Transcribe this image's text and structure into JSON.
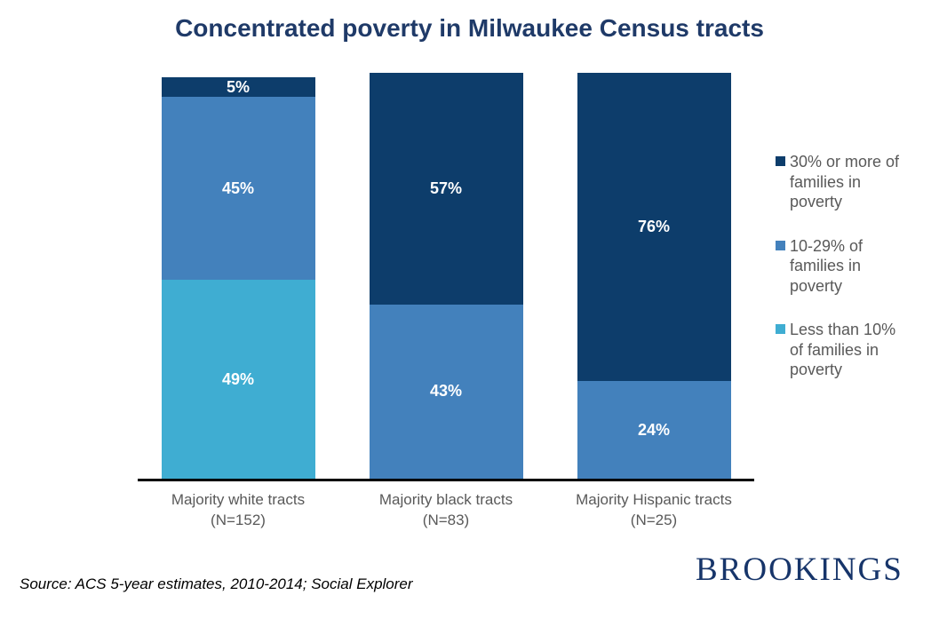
{
  "title": {
    "text": "Concentrated poverty in Milwaukee Census tracts",
    "color": "#1f3a68"
  },
  "chart_data": {
    "type": "bar",
    "subtype": "stacked-column",
    "unit": "%",
    "axis": {
      "max": 100,
      "baseline_color": "#000000",
      "gridlines": false,
      "y_axis_visible": false
    },
    "categories": [
      {
        "label": "Majority white tracts",
        "sublabel": "(N=152)"
      },
      {
        "label": "Majority black tracts",
        "sublabel": "(N=83)"
      },
      {
        "label": "Majority Hispanic tracts",
        "sublabel": "(N=25)"
      }
    ],
    "series": [
      {
        "name": "Less than 10% of families in poverty",
        "color": "#3fadd2",
        "values": [
          49,
          0,
          0
        ],
        "labels": [
          "49%",
          "",
          ""
        ]
      },
      {
        "name": "10-29% of families in poverty",
        "color": "#4381bc",
        "values": [
          45,
          43,
          24
        ],
        "labels": [
          "45%",
          "43%",
          "24%"
        ]
      },
      {
        "name": "30% or more of families in poverty",
        "color": "#0d3d6b",
        "values": [
          5,
          57,
          76
        ],
        "labels": [
          "5%",
          "57%",
          "76%"
        ]
      }
    ],
    "legend": {
      "position": "right",
      "text_color": "#595959",
      "items": [
        {
          "swatch_color": "#0d3d6b",
          "lines": [
            "30% or more of",
            "families in",
            "poverty"
          ]
        },
        {
          "swatch_color": "#4381bc",
          "lines": [
            "10-29% of",
            "families in",
            "poverty"
          ]
        },
        {
          "swatch_color": "#3fadd2",
          "lines": [
            "Less than 10%",
            "of families in",
            "poverty"
          ]
        }
      ]
    },
    "value_label_color": "#ffffff",
    "category_label_color": "#595959"
  },
  "footer": {
    "source": "Source: ACS 5-year estimates, 2010-2014; Social Explorer",
    "logo": "BROOKINGS",
    "logo_color": "#17356a"
  }
}
